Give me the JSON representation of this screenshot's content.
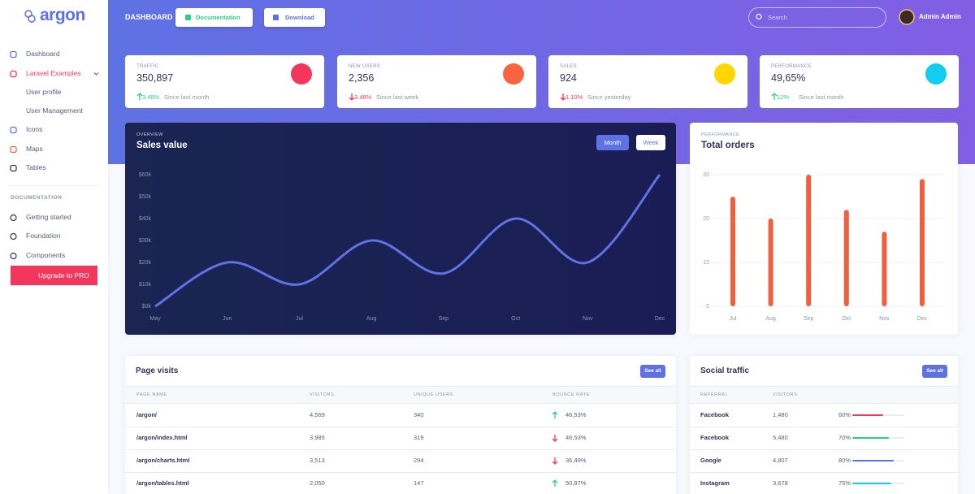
{
  "sidebar": {
    "brand": "argon",
    "nav": [
      {
        "label": "Dashboard",
        "color": "#5e72e4",
        "level": 1
      },
      {
        "label": "Laravel Examples",
        "color": "#f5365c",
        "level": 1,
        "active": true
      },
      {
        "label": "User profile",
        "level": 2
      },
      {
        "label": "User Management",
        "level": 2
      },
      {
        "label": "Icons",
        "color": "#5e72e4",
        "level": 1
      },
      {
        "label": "Maps",
        "color": "#fb6340",
        "level": 1
      },
      {
        "label": "Tables",
        "color": "#32325d",
        "level": 1
      }
    ],
    "section": "DOCUMENTATION",
    "docs": [
      {
        "label": "Getting started",
        "color": "#32325d"
      },
      {
        "label": "Foundation",
        "color": "#32325d"
      },
      {
        "label": "Components",
        "color": "#32325d"
      }
    ],
    "upgrade": "Upgrade to PRO"
  },
  "header": {
    "title": "DASHBOARD",
    "buttons": [
      {
        "label": "Documentation",
        "color": "#2dce89"
      },
      {
        "label": "Download",
        "color": "#5e72e4"
      }
    ],
    "search_placeholder": "Search",
    "user": "Admin Admin"
  },
  "stats": [
    {
      "label": "TRAFFIC",
      "value": "350,897",
      "change": "3.48%",
      "trend": "up",
      "period": "Since last month",
      "color": "#f5365c"
    },
    {
      "label": "NEW USERS",
      "value": "2,356",
      "change": "3.48%",
      "trend": "down",
      "period": "Since last week",
      "color": "#fb6340"
    },
    {
      "label": "SALES",
      "value": "924",
      "change": "1.10%",
      "trend": "down",
      "period": "Since yesterday",
      "color": "#ffd600"
    },
    {
      "label": "PERFORMANCE",
      "value": "49,65%",
      "change": "12%",
      "trend": "up",
      "period": "Since last month",
      "color": "#11cdef"
    }
  ],
  "chart_data": [
    {
      "type": "line",
      "subtitle": "OVERVIEW",
      "title": "Sales value",
      "toggles": [
        "Month",
        "Week"
      ],
      "categories": [
        "May",
        "Jun",
        "Jul",
        "Aug",
        "Sep",
        "Oct",
        "Nov",
        "Dec"
      ],
      "values": [
        0,
        20,
        10,
        30,
        15,
        40,
        20,
        60
      ],
      "color": "#5e72e4",
      "grid": false,
      "ylim": [
        0,
        60
      ],
      "yticks": [
        {
          "value": 0,
          "label": "$0k"
        },
        {
          "value": 10,
          "label": "$10k"
        },
        {
          "value": 20,
          "label": "$20k"
        },
        {
          "value": 30,
          "label": "$30k"
        },
        {
          "value": 40,
          "label": "$40k"
        },
        {
          "value": 50,
          "label": "$50k"
        },
        {
          "value": 60,
          "label": "$60k"
        }
      ]
    },
    {
      "type": "bar",
      "subtitle": "PERFORMANCE",
      "title": "Total orders",
      "categories": [
        "Jul",
        "Aug",
        "Sep",
        "Oct",
        "Nov",
        "Dec"
      ],
      "values": [
        25,
        20,
        30,
        22,
        17,
        29
      ],
      "color": "#f0603e",
      "grid": true,
      "ylim": [
        0,
        30
      ],
      "yticks": [
        0,
        10,
        20,
        30
      ]
    }
  ],
  "page_visits": {
    "title": "Page visits",
    "button": "See all",
    "columns": [
      "PAGE NAME",
      "VISITORS",
      "UNIQUE USERS",
      "BOUNCE RATE"
    ],
    "rows": [
      {
        "page": "/argon/",
        "visitors": "4,569",
        "unique": "340",
        "bounce": "46,53%",
        "trend": "up"
      },
      {
        "page": "/argon/index.html",
        "visitors": "3,985",
        "unique": "319",
        "bounce": "46,53%",
        "trend": "down"
      },
      {
        "page": "/argon/charts.html",
        "visitors": "3,513",
        "unique": "294",
        "bounce": "36,49%",
        "trend": "down"
      },
      {
        "page": "/argon/tables.html",
        "visitors": "2,050",
        "unique": "147",
        "bounce": "50,87%",
        "trend": "up"
      }
    ]
  },
  "social_traffic": {
    "title": "Social traffic",
    "button": "See all",
    "columns": [
      "REFERRAL",
      "VISITORS"
    ],
    "rows": [
      {
        "referral": "Facebook",
        "visitors": "1,480",
        "percent": {
          "value": 60,
          "label": "60%"
        },
        "color": "#f5365c"
      },
      {
        "referral": "Facebook",
        "visitors": "5,480",
        "percent": {
          "value": 70,
          "label": "70%"
        },
        "color": "#2dce89"
      },
      {
        "referral": "Google",
        "visitors": "4,807",
        "percent": {
          "value": 80,
          "label": "80%"
        },
        "color": "#5e72e4"
      },
      {
        "referral": "Instagram",
        "visitors": "3,678",
        "percent": {
          "value": 75,
          "label": "75%"
        },
        "color": "#11cdef"
      }
    ]
  }
}
